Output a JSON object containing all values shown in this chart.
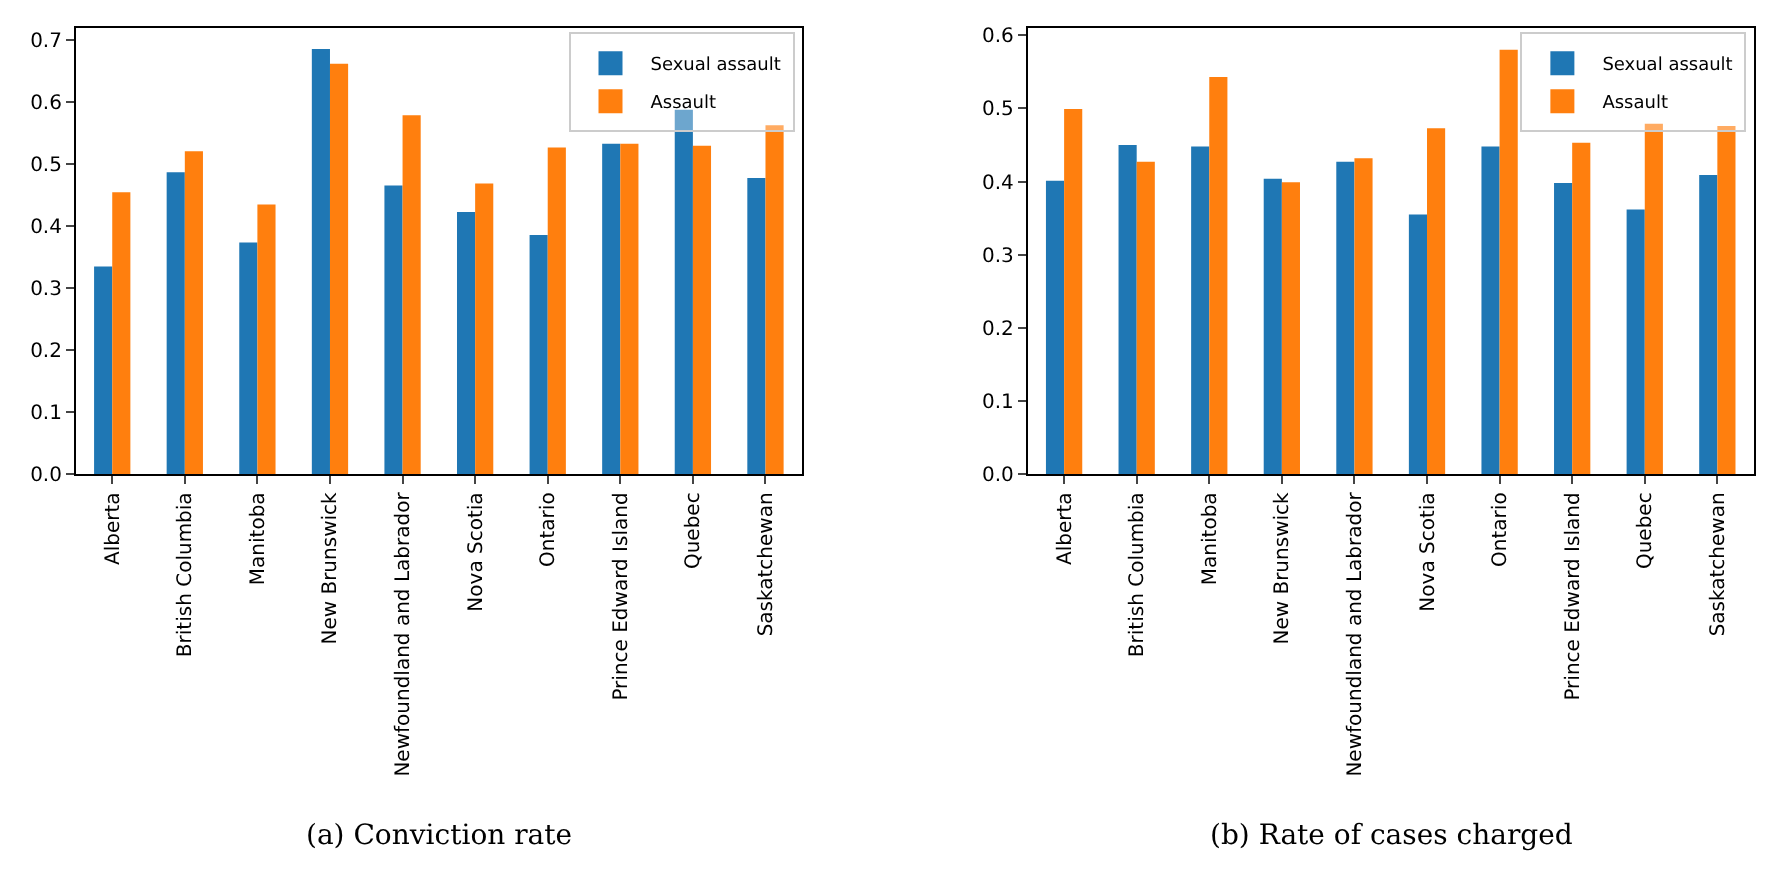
{
  "chart_data": [
    {
      "type": "bar",
      "title": "(a) Conviction rate",
      "categories": [
        "Alberta",
        "British Columbia",
        "Manitoba",
        "New Brunswick",
        "Newfoundland and Labrador",
        "Nova Scotia",
        "Ontario",
        "Prince Edward Island",
        "Quebec",
        "Saskatchewan"
      ],
      "series": [
        {
          "name": "Sexual assault",
          "color": "#1f77b4",
          "values": [
            0.335,
            0.487,
            0.374,
            0.686,
            0.466,
            0.423,
            0.386,
            0.533,
            0.588,
            0.478
          ]
        },
        {
          "name": "Assault",
          "color": "#ff7f0e",
          "values": [
            0.455,
            0.521,
            0.435,
            0.662,
            0.579,
            0.469,
            0.527,
            0.533,
            0.53,
            0.563
          ]
        }
      ],
      "ylim": [
        0,
        0.72
      ],
      "yticks": [
        {
          "value": 0,
          "label": "0.0"
        },
        0.1,
        0.2,
        0.3,
        0.4,
        0.5,
        0.6,
        0.7
      ],
      "legend": "top right"
    },
    {
      "type": "bar",
      "title": "(b) Rate of cases charged",
      "categories": [
        "Alberta",
        "British Columbia",
        "Manitoba",
        "New Brunswick",
        "Newfoundland and Labrador",
        "Nova Scotia",
        "Ontario",
        "Prince Edward Island",
        "Quebec",
        "Saskatchewan"
      ],
      "series": [
        {
          "name": "Sexual assault",
          "color": "#1f77b4",
          "values": [
            0.401,
            0.45,
            0.448,
            0.404,
            0.427,
            0.355,
            0.448,
            0.398,
            0.362,
            0.409
          ]
        },
        {
          "name": "Assault",
          "color": "#ff7f0e",
          "values": [
            0.499,
            0.427,
            0.543,
            0.399,
            0.432,
            0.473,
            0.58,
            0.453,
            0.479,
            0.476
          ]
        }
      ],
      "ylim": [
        0,
        0.61
      ],
      "yticks": [
        {
          "value": 0,
          "label": "0.0"
        },
        0.1,
        0.2,
        0.3,
        0.4,
        0.5,
        0.6
      ],
      "legend": "top right"
    }
  ]
}
